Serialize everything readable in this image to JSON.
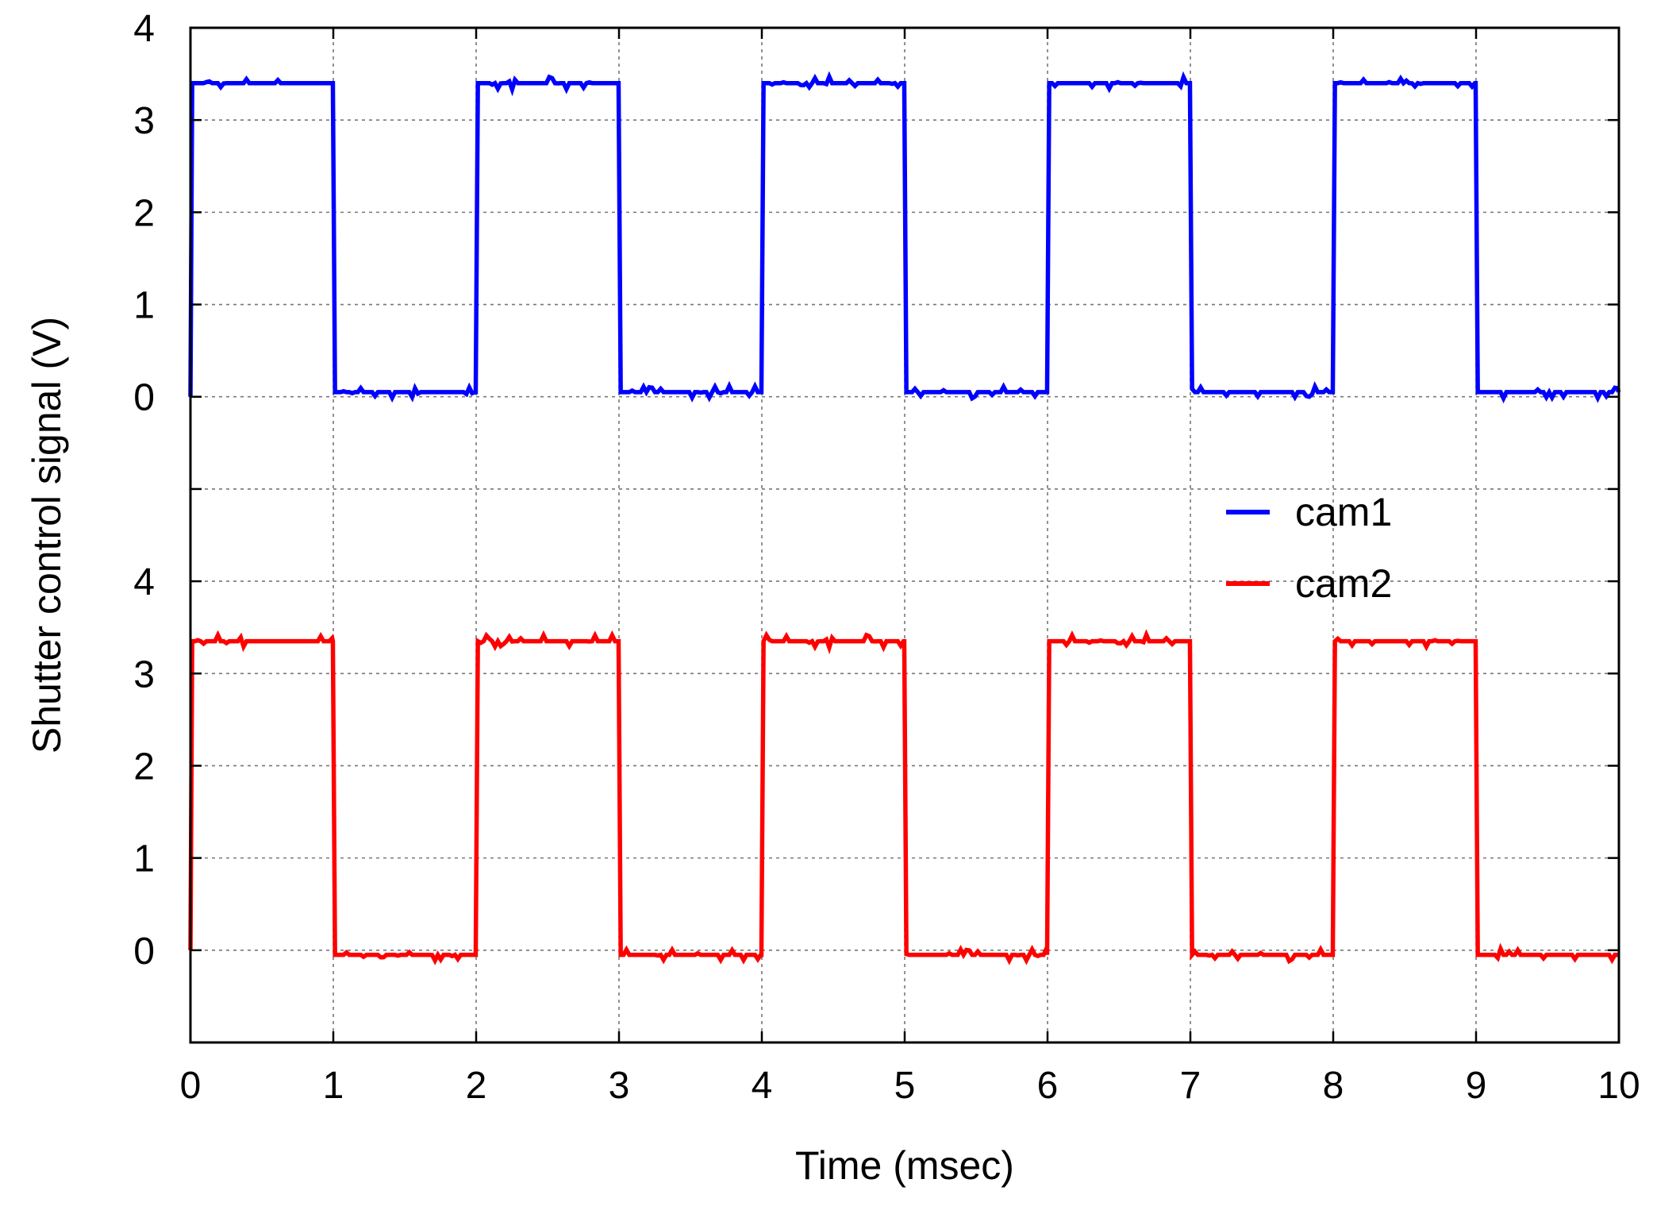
{
  "chart_data": {
    "type": "line",
    "title": "",
    "xlabel": "Time (msec)",
    "ylabel": "Shutter control signal (V)",
    "xlim": [
      0,
      10
    ],
    "x_ticks": [
      "0",
      "1",
      "2",
      "3",
      "4",
      "5",
      "6",
      "7",
      "8",
      "9",
      "10"
    ],
    "ylim_display": [
      -1,
      10
    ],
    "y_ticks": [
      {
        "label": "0",
        "value": 6
      },
      {
        "label": "1",
        "value": 7
      },
      {
        "label": "2",
        "value": 8
      },
      {
        "label": "3",
        "value": 9
      },
      {
        "label": "4",
        "value": 10
      },
      {
        "label": "0",
        "value": 0
      },
      {
        "label": "1",
        "value": 1
      },
      {
        "label": "2",
        "value": 2
      },
      {
        "label": "3",
        "value": 3
      },
      {
        "label": "4",
        "value": 4
      }
    ],
    "grid": true,
    "legend_position": "center-right",
    "series": [
      {
        "name": "cam1",
        "color": "#0000ff",
        "offset": 6,
        "high": 3.4,
        "low": 0.05,
        "transitions_ms": [
          0,
          1,
          2,
          3,
          4,
          5,
          6,
          7,
          8,
          9
        ],
        "start_state": "high",
        "end_ms": 10
      },
      {
        "name": "cam2",
        "color": "#ff0000",
        "offset": 0,
        "high": 3.35,
        "low": -0.05,
        "transitions_ms": [
          0,
          1,
          2,
          3,
          4,
          5,
          6,
          7,
          8,
          9
        ],
        "start_state": "high",
        "end_ms": 10
      }
    ]
  }
}
